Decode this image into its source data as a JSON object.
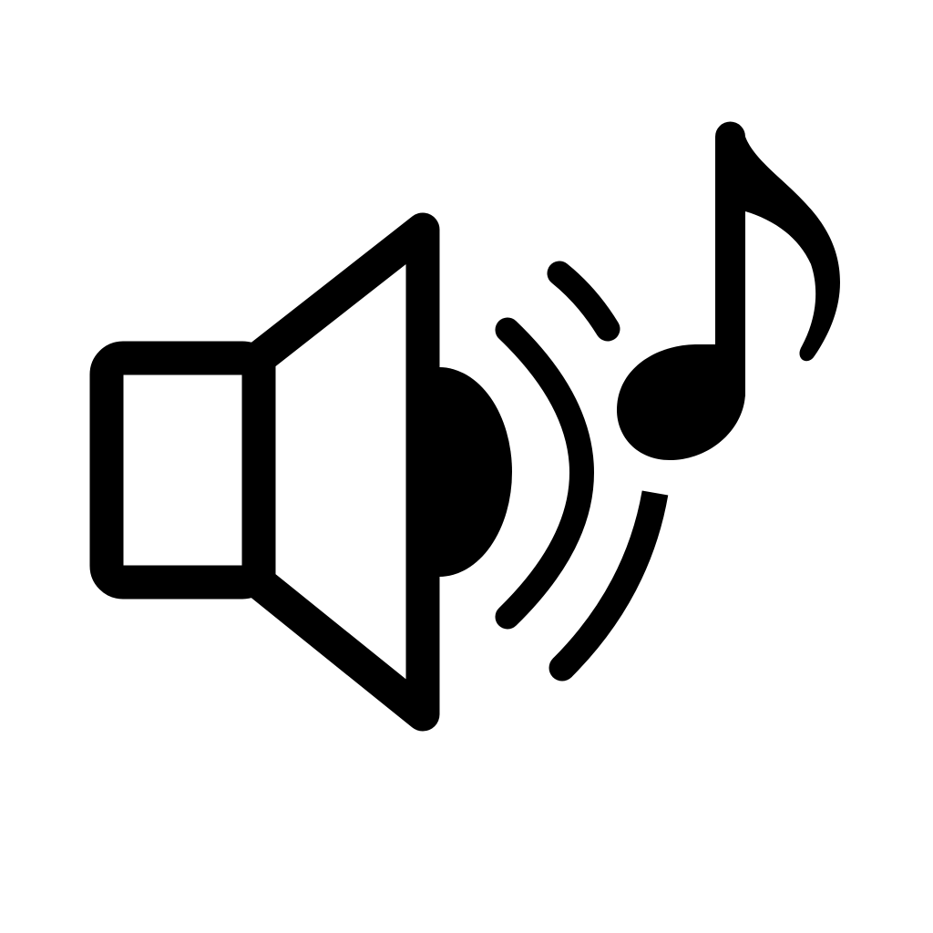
{
  "icon": {
    "name": "speaker-with-music-note-icon",
    "parts": [
      "speaker-box",
      "speaker-cone",
      "speaker-dome",
      "sound-waves",
      "music-note"
    ]
  },
  "colors": {
    "foreground": "#000000",
    "background": "#ffffff"
  }
}
